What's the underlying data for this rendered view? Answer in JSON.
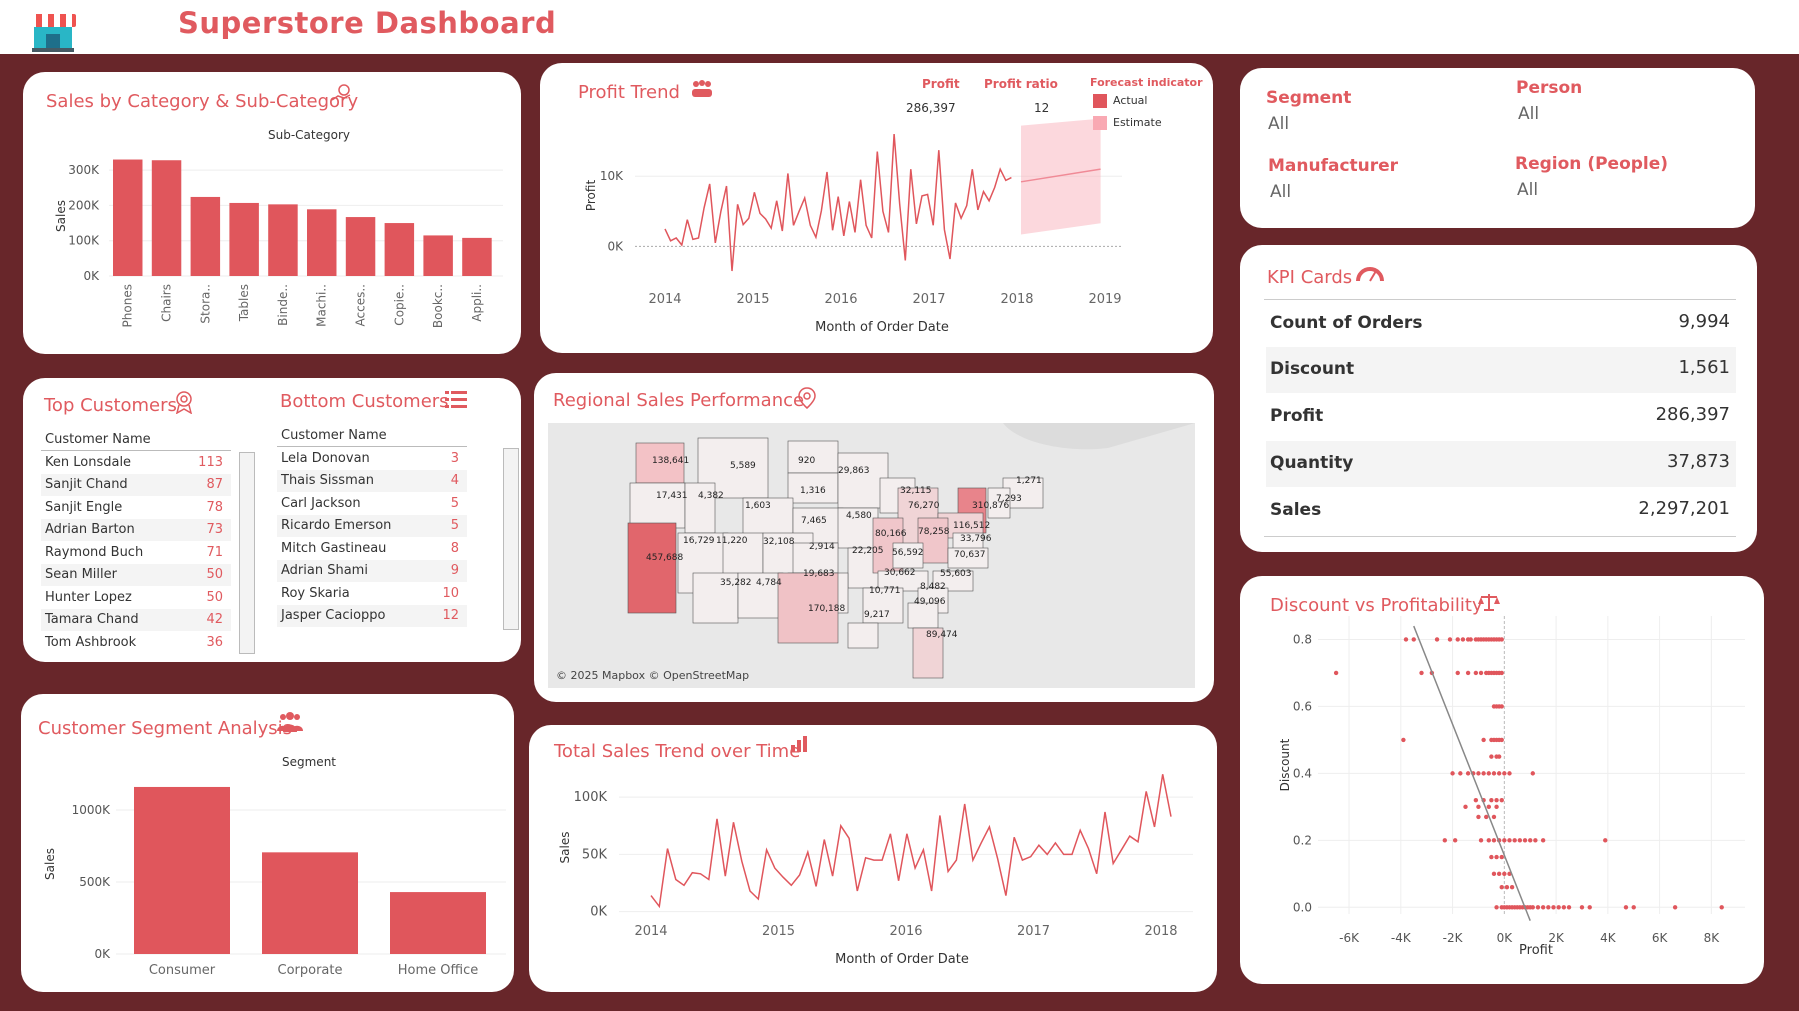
{
  "header": {
    "title": "Superstore Dashboard",
    "logo_icon": "store-icon"
  },
  "colors": {
    "accent": "#e05a5f",
    "background": "#68262a",
    "bar": "#e0565c",
    "estimate": "#f9a9b3"
  },
  "sales_by_category": {
    "title": "Sales by Category & Sub-Category",
    "header": "Sub-Category",
    "chart_data": {
      "type": "bar",
      "categories": [
        "Phones",
        "Chairs",
        "Stora..",
        "Tables",
        "Binde..",
        "Machi..",
        "Acces..",
        "Copie..",
        "Bookc..",
        "Appli.."
      ],
      "values": [
        330000,
        328000,
        224000,
        207000,
        203000,
        189000,
        167000,
        150000,
        115000,
        108000
      ],
      "ylabel": "Sales",
      "yticks": [
        "0K",
        "100K",
        "200K",
        "300K"
      ],
      "ylim": [
        0,
        340000
      ]
    }
  },
  "profit_trend": {
    "title": "Profit Trend",
    "profit_label": "Profit",
    "profit_value": "286,397",
    "ratio_label": "Profit ratio",
    "ratio_value": "12",
    "forecast_label": "Forecast indicator",
    "legend": [
      "Actual",
      "Estimate"
    ],
    "chart_data": {
      "type": "line",
      "xlabel": "Month of Order Date",
      "ylabel": "Profit",
      "xticks": [
        "2014",
        "2015",
        "2016",
        "2017",
        "2018",
        "2019"
      ],
      "yticks": [
        "0K",
        "10K"
      ],
      "ylim": [
        -4500,
        19000
      ],
      "actual": [
        2500,
        800,
        1200,
        200,
        3800,
        1000,
        1200,
        5500,
        8900,
        500,
        5000,
        8600,
        -3500,
        6000,
        3100,
        4000,
        7700,
        4700,
        3900,
        2600,
        6500,
        2200,
        10400,
        3000,
        5000,
        6900,
        3000,
        1300,
        5100,
        10600,
        2300,
        7100,
        1500,
        6400,
        2000,
        9500,
        3000,
        1200,
        13500,
        5000,
        2000,
        16000,
        6000,
        -2000,
        11000,
        3200,
        7200,
        7400,
        3000,
        13700,
        2400,
        -1800,
        6200,
        4000,
        5800,
        11000,
        5200,
        7800,
        6500,
        8400,
        11000,
        9400,
        9800
      ],
      "forecast_mid_start": 9200,
      "forecast_mid_end": 11000,
      "forecast_low_start": 1700,
      "forecast_low_end": 3300,
      "forecast_high_start": 17200,
      "forecast_high_end": 18200
    }
  },
  "filters": [
    {
      "label": "Segment",
      "value": "All"
    },
    {
      "label": "Person",
      "value": "All"
    },
    {
      "label": "Manufacturer",
      "value": "All"
    },
    {
      "label": "Region (People)",
      "value": "All"
    }
  ],
  "kpi": {
    "title": "KPI Cards",
    "rows": [
      {
        "label": "Count of Orders",
        "value": "9,994"
      },
      {
        "label": "Discount",
        "value": "1,561"
      },
      {
        "label": "Profit",
        "value": "286,397"
      },
      {
        "label": "Quantity",
        "value": "37,873"
      },
      {
        "label": "Sales",
        "value": "2,297,201"
      }
    ]
  },
  "top_customers": {
    "title": "Top Customers",
    "header": "Customer Name",
    "rows": [
      {
        "name": "Ken Lonsdale",
        "count": "113"
      },
      {
        "name": "Sanjit Chand",
        "count": "87"
      },
      {
        "name": "Sanjit Engle",
        "count": "78"
      },
      {
        "name": "Adrian Barton",
        "count": "73"
      },
      {
        "name": "Raymond Buch",
        "count": "71"
      },
      {
        "name": "Sean Miller",
        "count": "50"
      },
      {
        "name": "Hunter Lopez",
        "count": "50"
      },
      {
        "name": "Tamara Chand",
        "count": "42"
      },
      {
        "name": "Tom Ashbrook",
        "count": "36"
      }
    ]
  },
  "bottom_customers": {
    "title": "Bottom Customers",
    "header": "Customer Name",
    "rows": [
      {
        "name": "Lela Donovan",
        "count": "3"
      },
      {
        "name": "Thais Sissman",
        "count": "4"
      },
      {
        "name": "Carl Jackson",
        "count": "5"
      },
      {
        "name": "Ricardo Emerson",
        "count": "5"
      },
      {
        "name": "Mitch Gastineau",
        "count": "8"
      },
      {
        "name": "Adrian Shami",
        "count": "9"
      },
      {
        "name": "Roy Skaria",
        "count": "10"
      },
      {
        "name": "Jasper Cacioppo",
        "count": "12"
      }
    ]
  },
  "regional": {
    "title": "Regional Sales Performance",
    "attribution": "© 2025 Mapbox © OpenStreetMap",
    "state_labels": [
      "138,641",
      "5,589",
      "920",
      "17,431",
      "4,382",
      "1,316",
      "29,863",
      "32,115",
      "1,271",
      "1,603",
      "76,270",
      "310,876",
      "7,293",
      "7,465",
      "4,580",
      "116,512",
      "16,729",
      "11,220",
      "32,108",
      "2,914",
      "22,205",
      "80,166",
      "78,258",
      "33,796",
      "457,688",
      "56,592",
      "70,637",
      "19,683",
      "30,662",
      "55,603",
      "35,282",
      "4,784",
      "8,482",
      "49,096",
      "10,771",
      "170,188",
      "9,217",
      "89,474"
    ]
  },
  "segment": {
    "title": "Customer Segment Analysis",
    "chart_data": {
      "type": "bar",
      "header": "Segment",
      "categories": [
        "Consumer",
        "Corporate",
        "Home Office"
      ],
      "values": [
        1160000,
        706000,
        430000
      ],
      "ylabel": "Sales",
      "yticks": [
        "0K",
        "500K",
        "1000K"
      ],
      "ylim": [
        0,
        1250000
      ]
    }
  },
  "sales_trend": {
    "title": "Total Sales Trend over Time",
    "chart_data": {
      "type": "line",
      "xlabel": "Month of Order Date",
      "ylabel": "Sales",
      "xticks": [
        "2014",
        "2015",
        "2016",
        "2017",
        "2018"
      ],
      "yticks": [
        "0K",
        "50K",
        "100K"
      ],
      "ylim": [
        -3000,
        115000
      ],
      "values": [
        14000,
        4500,
        55000,
        28000,
        23000,
        34000,
        33000,
        28000,
        81000,
        31000,
        78000,
        44000,
        18000,
        11000,
        54000,
        38000,
        30000,
        23000,
        32000,
        52000,
        22000,
        63000,
        31000,
        75000,
        64000,
        18000,
        47000,
        45000,
        45000,
        68000,
        27000,
        68000,
        38000,
        54000,
        18000,
        84000,
        35000,
        45000,
        94000,
        45000,
        60000,
        74000,
        46000,
        14000,
        65000,
        45000,
        48000,
        58000,
        50000,
        60000,
        50000,
        50000,
        71000,
        55000,
        33000,
        87000,
        42000,
        54000,
        66000,
        61000,
        105000,
        74000,
        120000,
        83000
      ]
    }
  },
  "discount_profit": {
    "title": "Discount vs Profitability",
    "chart_data": {
      "type": "scatter",
      "xlabel": "Profit",
      "ylabel": "Discount",
      "xticks": [
        "-6K",
        "-4K",
        "-2K",
        "0K",
        "2K",
        "4K",
        "6K",
        "8K"
      ],
      "yticks": [
        "0.0",
        "0.2",
        "0.4",
        "0.6",
        "0.8"
      ],
      "xlim": [
        -7200,
        9300
      ],
      "ylim": [
        -0.02,
        0.87
      ],
      "trend": [
        [
          -3500,
          0.84
        ],
        [
          1000,
          -0.04
        ]
      ],
      "points": [
        [
          -6500,
          0.7
        ],
        [
          -3800,
          0.8
        ],
        [
          -3500,
          0.8
        ],
        [
          -2600,
          0.8
        ],
        [
          -2100,
          0.8
        ],
        [
          -1800,
          0.8
        ],
        [
          -1600,
          0.8
        ],
        [
          -1400,
          0.8
        ],
        [
          -1300,
          0.8
        ],
        [
          -1100,
          0.8
        ],
        [
          -1000,
          0.8
        ],
        [
          -900,
          0.8
        ],
        [
          -800,
          0.8
        ],
        [
          -700,
          0.8
        ],
        [
          -600,
          0.8
        ],
        [
          -500,
          0.8
        ],
        [
          -400,
          0.8
        ],
        [
          -300,
          0.8
        ],
        [
          -200,
          0.8
        ],
        [
          -100,
          0.8
        ],
        [
          -3200,
          0.7
        ],
        [
          -2800,
          0.7
        ],
        [
          -1800,
          0.7
        ],
        [
          -1400,
          0.7
        ],
        [
          -1100,
          0.7
        ],
        [
          -900,
          0.7
        ],
        [
          -700,
          0.7
        ],
        [
          -600,
          0.7
        ],
        [
          -500,
          0.7
        ],
        [
          -400,
          0.7
        ],
        [
          -300,
          0.7
        ],
        [
          -200,
          0.7
        ],
        [
          -100,
          0.7
        ],
        [
          -400,
          0.6
        ],
        [
          -300,
          0.6
        ],
        [
          -200,
          0.6
        ],
        [
          -100,
          0.6
        ],
        [
          -800,
          0.5
        ],
        [
          -500,
          0.5
        ],
        [
          -400,
          0.5
        ],
        [
          -300,
          0.5
        ],
        [
          -200,
          0.5
        ],
        [
          -100,
          0.5
        ],
        [
          -3900,
          0.5
        ],
        [
          -500,
          0.45
        ],
        [
          -300,
          0.45
        ],
        [
          -200,
          0.45
        ],
        [
          -2000,
          0.4
        ],
        [
          -1700,
          0.4
        ],
        [
          -1400,
          0.4
        ],
        [
          -1200,
          0.4
        ],
        [
          -1000,
          0.4
        ],
        [
          -800,
          0.4
        ],
        [
          -600,
          0.4
        ],
        [
          -400,
          0.4
        ],
        [
          -200,
          0.4
        ],
        [
          0,
          0.4
        ],
        [
          200,
          0.4
        ],
        [
          1100,
          0.4
        ],
        [
          -1100,
          0.32
        ],
        [
          -800,
          0.32
        ],
        [
          -500,
          0.32
        ],
        [
          -300,
          0.32
        ],
        [
          -100,
          0.32
        ],
        [
          -1500,
          0.3
        ],
        [
          -1000,
          0.3
        ],
        [
          -600,
          0.3
        ],
        [
          -300,
          0.3
        ],
        [
          -1000,
          0.27
        ],
        [
          -700,
          0.27
        ],
        [
          -400,
          0.27
        ],
        [
          -2300,
          0.2
        ],
        [
          -1900,
          0.2
        ],
        [
          -900,
          0.2
        ],
        [
          -600,
          0.2
        ],
        [
          -400,
          0.2
        ],
        [
          -200,
          0.2
        ],
        [
          0,
          0.2
        ],
        [
          200,
          0.2
        ],
        [
          400,
          0.2
        ],
        [
          600,
          0.2
        ],
        [
          800,
          0.2
        ],
        [
          1000,
          0.2
        ],
        [
          1200,
          0.2
        ],
        [
          1500,
          0.2
        ],
        [
          3900,
          0.2
        ],
        [
          -500,
          0.15
        ],
        [
          -300,
          0.15
        ],
        [
          -100,
          0.15
        ],
        [
          -400,
          0.1
        ],
        [
          -200,
          0.1
        ],
        [
          0,
          0.1
        ],
        [
          200,
          0.1
        ],
        [
          -100,
          0.06
        ],
        [
          100,
          0.06
        ],
        [
          300,
          0.06
        ],
        [
          -300,
          0.0
        ],
        [
          -100,
          0.0
        ],
        [
          0,
          0.0
        ],
        [
          100,
          0.0
        ],
        [
          200,
          0.0
        ],
        [
          300,
          0.0
        ],
        [
          400,
          0.0
        ],
        [
          500,
          0.0
        ],
        [
          600,
          0.0
        ],
        [
          700,
          0.0
        ],
        [
          800,
          0.0
        ],
        [
          900,
          0.0
        ],
        [
          1000,
          0.0
        ],
        [
          1100,
          0.0
        ],
        [
          1300,
          0.0
        ],
        [
          1500,
          0.0
        ],
        [
          1700,
          0.0
        ],
        [
          1900,
          0.0
        ],
        [
          2100,
          0.0
        ],
        [
          2300,
          0.0
        ],
        [
          2500,
          0.0
        ],
        [
          3000,
          0.0
        ],
        [
          3300,
          0.0
        ],
        [
          4700,
          0.0
        ],
        [
          5000,
          0.0
        ],
        [
          6600,
          0.0
        ],
        [
          8400,
          0.0
        ]
      ]
    }
  }
}
